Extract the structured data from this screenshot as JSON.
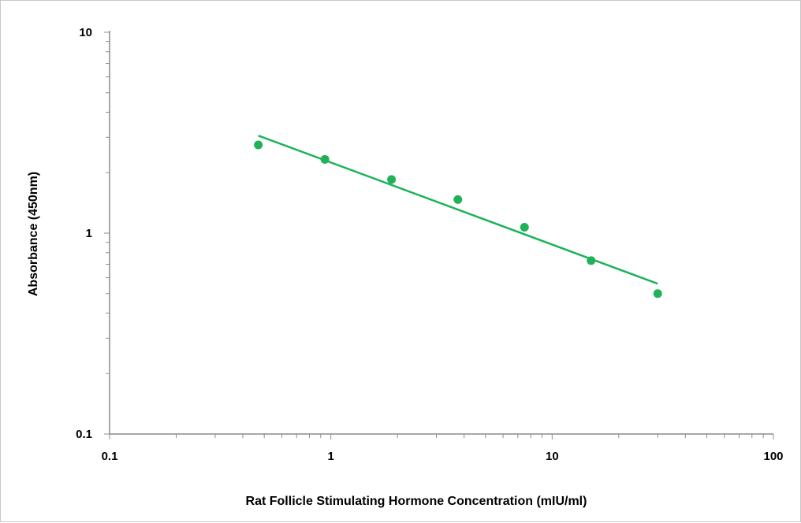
{
  "chart_data": {
    "type": "scatter",
    "title": "",
    "xlabel": "Rat Follicle Stimulating  Hormone Concentration (mIU/ml)",
    "ylabel": "Absorbance (450nm)",
    "x_scale": "log",
    "y_scale": "log",
    "xlim": [
      0.1,
      100
    ],
    "ylim": [
      0.1,
      10
    ],
    "x_ticks": [
      "0.1",
      "1",
      "10",
      "100"
    ],
    "y_ticks": [
      "0.1",
      "1",
      "10"
    ],
    "grid": false,
    "legend": "none",
    "series": [
      {
        "x": [
          0.47,
          0.94,
          1.88,
          3.75,
          7.5,
          15,
          30
        ],
        "y": [
          2.75,
          2.33,
          1.85,
          1.47,
          1.07,
          0.73,
          0.5
        ],
        "color": "#1fb259",
        "trendline": {
          "type": "power",
          "from": [
            0.47,
            3.06
          ],
          "to": [
            30,
            0.56
          ]
        }
      }
    ]
  }
}
